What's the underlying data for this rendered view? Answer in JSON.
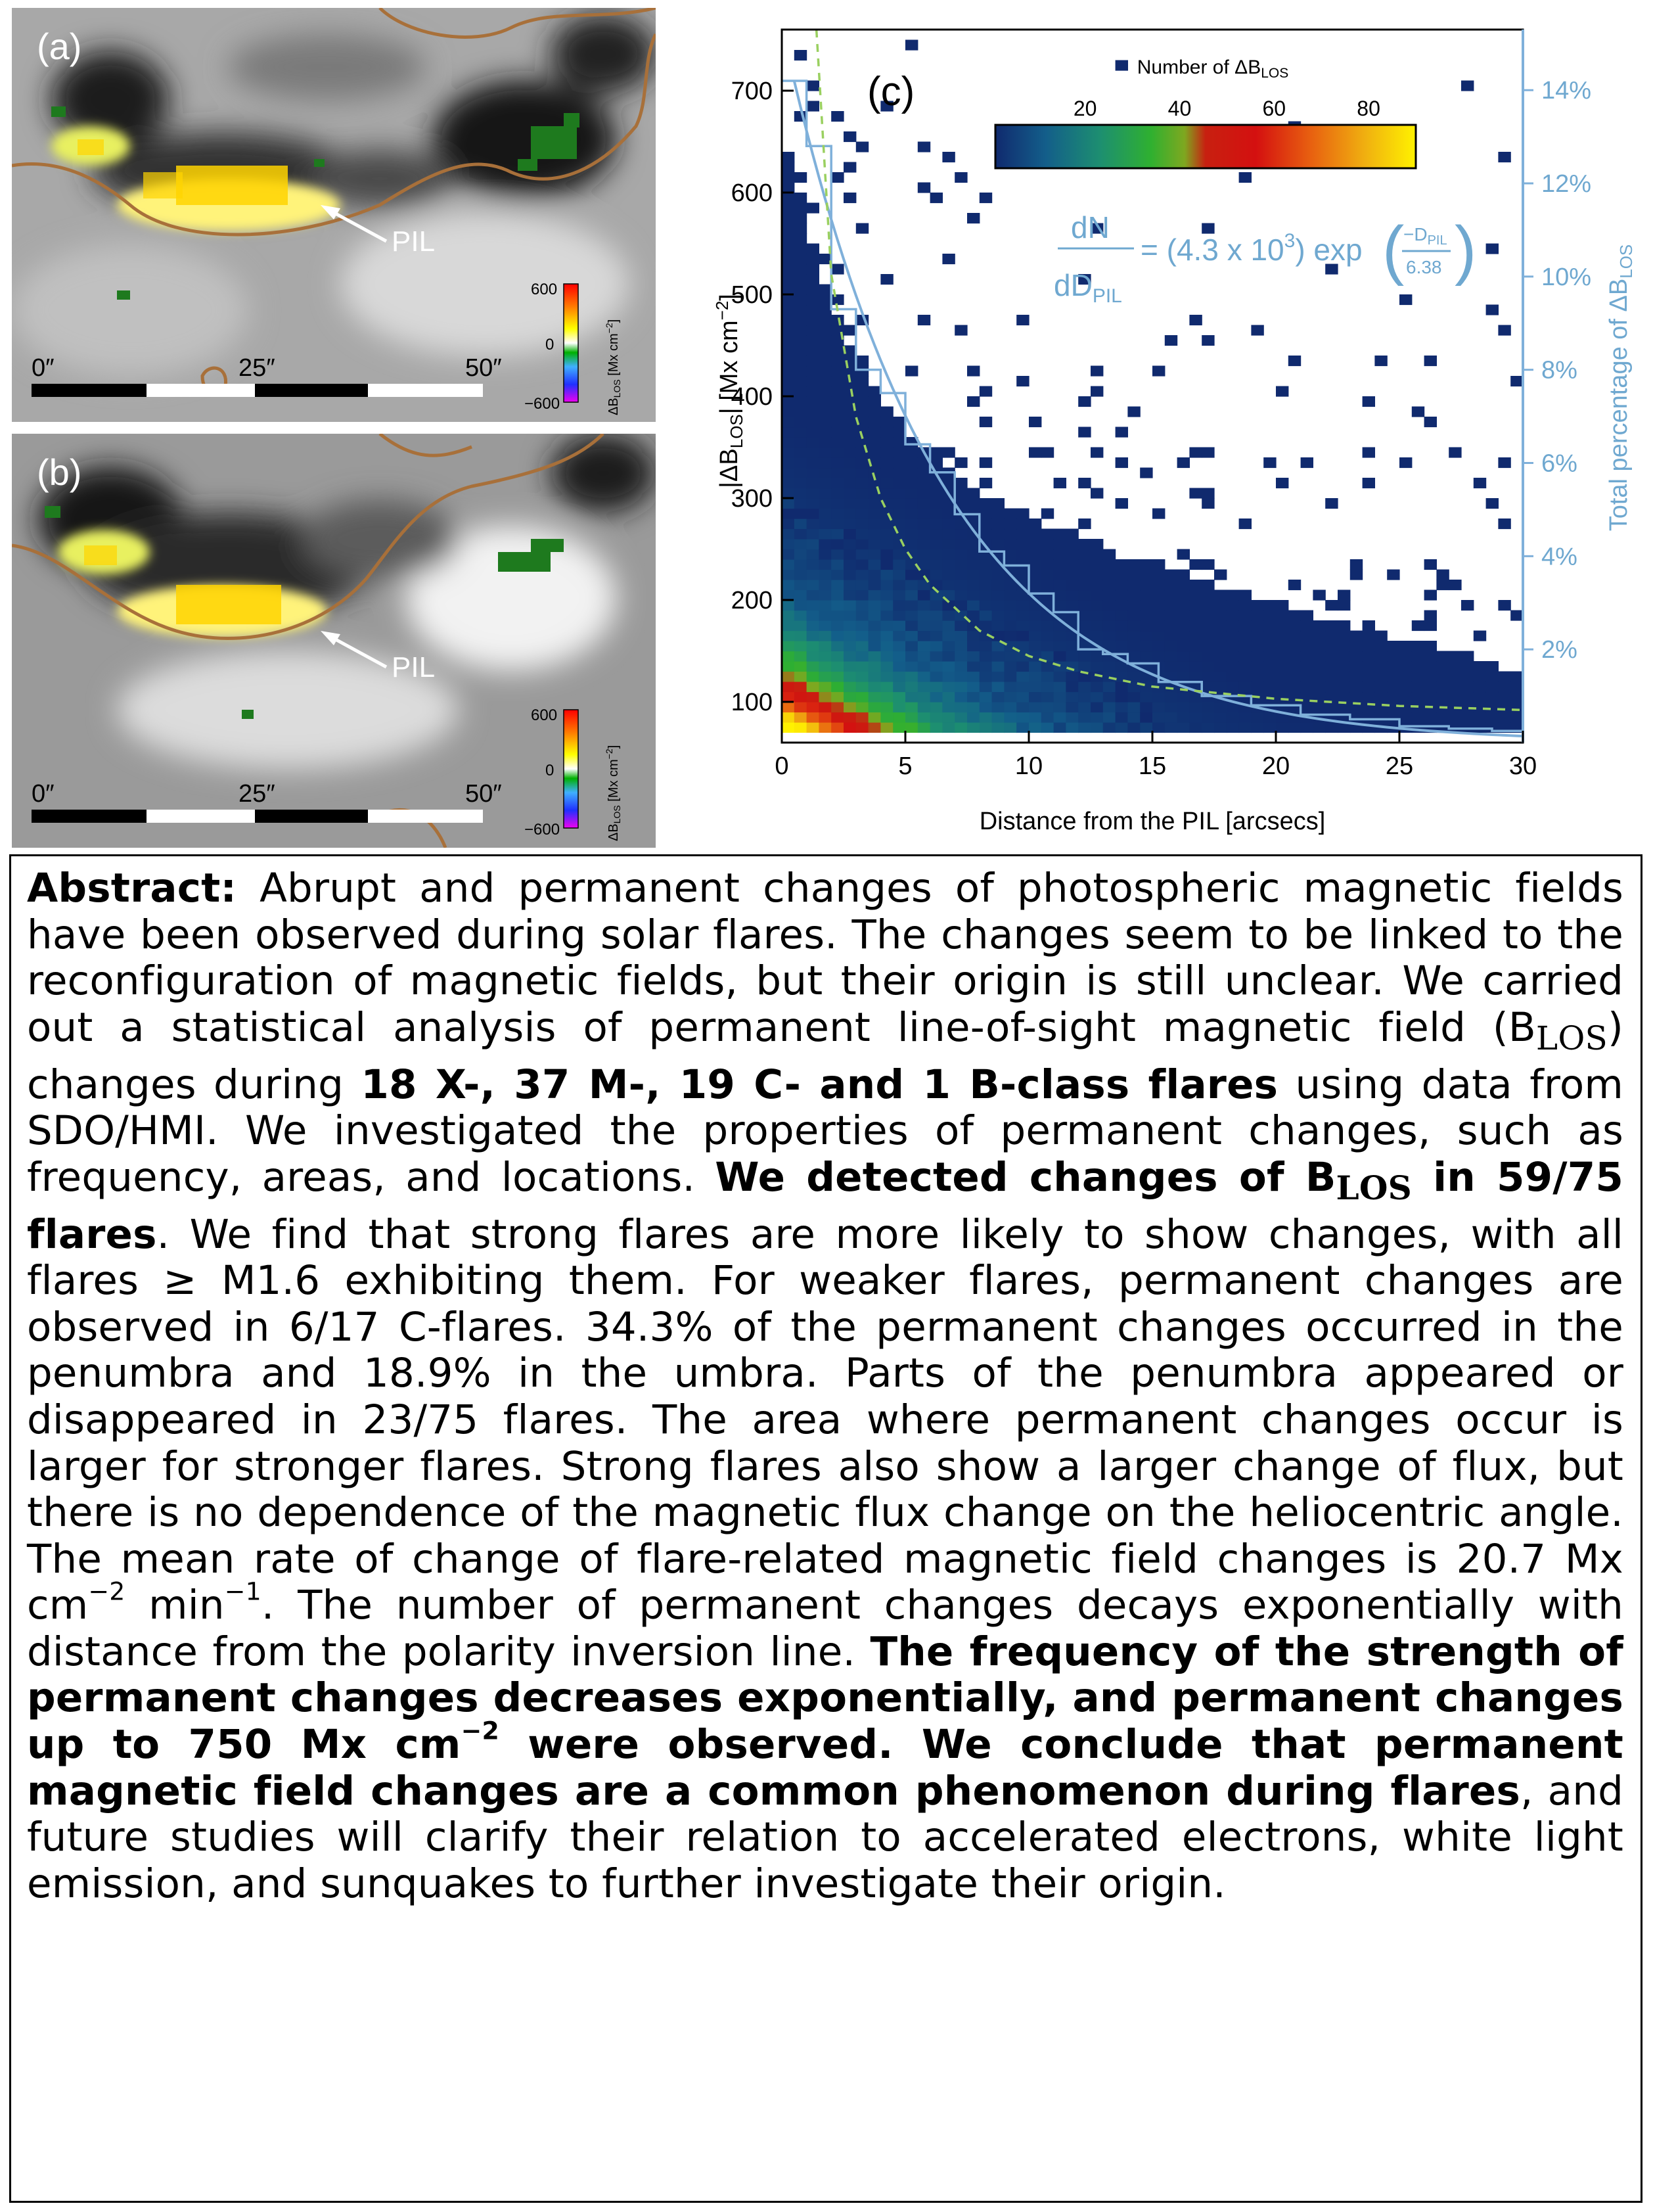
{
  "figure": {
    "panel_a": {
      "label": "(a)",
      "pil_label": "PIL",
      "scale_ticks": [
        "0″",
        "25″",
        "50″"
      ],
      "colorbar": {
        "ticks": [
          "600",
          "0",
          "−600"
        ],
        "label": "ΔB_LOS [Mx cm^-2]",
        "colors": [
          "#f000f0",
          "#0000ff",
          "#00a0ff",
          "#00c000",
          "#ffffff",
          "#ffff00",
          "#ff8000",
          "#ff0000"
        ]
      }
    },
    "panel_b": {
      "label": "(b)",
      "pil_label": "PIL",
      "scale_ticks": [
        "0″",
        "25″",
        "50″"
      ],
      "colorbar": {
        "ticks": [
          "600",
          "0",
          "−600"
        ],
        "label": "ΔB_LOS [Mx cm^-2]"
      }
    },
    "panel_c": {
      "label": "(c)",
      "colorbar_title": "Number of ΔB_LOS",
      "colorbar_ticks": [
        "20",
        "40",
        "60",
        "80"
      ],
      "fit_equation": "dN/dD_PIL = (4.3 x 10^3) exp(−D_PIL/6.38)",
      "fit_color": "#6fa8d0"
    }
  },
  "chart_data": {
    "type": "heatmap",
    "title": "",
    "xlabel": "Distance from the PIL [arcsecs]",
    "ylabel": "|ΔB_LOS| [Mx cm^-2]",
    "y2label": "Total percentage of ΔB_LOS",
    "xlim": [
      0,
      30
    ],
    "ylim": [
      60,
      760
    ],
    "y2lim": [
      0,
      15.3
    ],
    "x_ticks": [
      0,
      5,
      10,
      15,
      20,
      25,
      30
    ],
    "y_ticks": [
      100,
      200,
      300,
      400,
      500,
      600,
      700
    ],
    "y2_ticks": [
      "2%",
      "4%",
      "6%",
      "8%",
      "10%",
      "12%",
      "14%"
    ],
    "y2_tick_values": [
      2,
      4,
      6,
      8,
      10,
      12,
      14
    ],
    "colorbar_range": [
      1,
      90
    ],
    "series": [
      {
        "name": "",
        "type": "step",
        "color": "#7fb0da",
        "x": [
          0.5,
          1.5,
          2.5,
          3.5,
          4.5,
          5.5,
          6.5,
          7.5,
          8.5,
          9.5,
          10.5,
          11.5,
          12.5,
          13.5,
          14.5,
          16,
          18,
          20,
          22,
          24,
          26,
          28,
          29.5
        ],
        "y": [
          14.2,
          12.8,
          9.3,
          8.0,
          7.5,
          6.4,
          5.8,
          4.9,
          4.1,
          3.8,
          3.2,
          2.8,
          2.0,
          1.9,
          1.7,
          1.3,
          1.0,
          0.8,
          0.6,
          0.5,
          0.35,
          0.3,
          0.25
        ]
      },
      {
        "name": "",
        "type": "exponential-fit",
        "color": "#7fb0da",
        "amplitude": 4300,
        "scale": 6.38
      },
      {
        "name": "",
        "type": "dashed-fit",
        "color": "#9ad060",
        "x": [
          1.4,
          2,
          3,
          4,
          5,
          6,
          8,
          10,
          12,
          15,
          20,
          25,
          30
        ],
        "y": [
          760,
          520,
          380,
          300,
          250,
          215,
          170,
          145,
          130,
          115,
          103,
          96,
          92
        ]
      }
    ]
  },
  "abstract": {
    "label": "Abstract:",
    "p1": " Abrupt and permanent changes of photospheric magnetic fields have been observed during solar flares. The changes seem to be linked to the reconfiguration of magnetic fields, but their origin is still unclear. We carried out a statistical analysis of permanent line-of-sight magnetic field (",
    "b_sym": "B",
    "los": "LOS",
    "p2": ") changes during ",
    "bold1": "18 X-, 37 M-, 19 C- and 1 B-class flares",
    "p3": " using data from SDO/HMI. We investigated the proper­ties of permanent changes, such as frequency, areas, and locations. ",
    "bold2a": "We detected changes of B",
    "bold2b": " in 59/75 flares",
    "p4": ". We find that strong flares are more likely to show changes, with all flares ≥ M1.6 exhibiting them. For weaker flares, permanent changes are observed in 6/17 C-flares. 34.3% of the permanent changes occurred in the penumbra and 18.9% in the umbra. Parts of the penumbra appeared or disappeared in 23/75 flares. The area where permanent changes occur is larger for stronger flares. Strong flares also show a larger change of flux, but there is no dependence of the magnetic flux change on the heliocentric angle. The mean rate of change of flare-related magnetic field changes is 20.7 Mx cm",
    "exp1": "−2",
    "p5": " min",
    "exp2": "−1",
    "p6": ". The number of permanent changes decays exponentially with distance from the polarity inversion line. ",
    "bold3a": "The frequency of the strength of permanent changes decreases exponentially, and permanent changes up to 750 Mx cm",
    "exp3": "−2",
    "bold3b": " were observed. We conclude that permanent magnetic field changes are a com­mon phenomenon during flares",
    "p7": ", and future studies will clarify their relation to accelerated electrons, white light emission, and sunquakes to further investigate their origin."
  }
}
